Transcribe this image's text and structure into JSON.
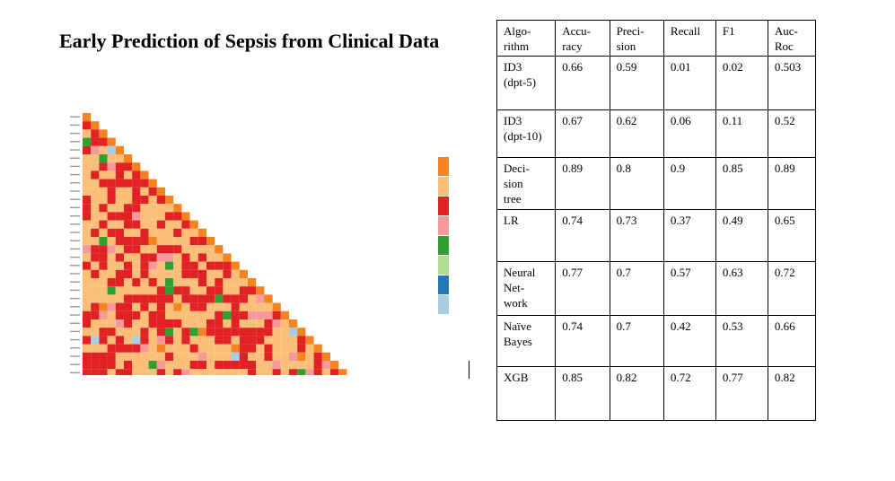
{
  "title": "Early Prediction of Sepsis from Clinical Data",
  "heatmap": {
    "palette": [
      "#f5831f",
      "#fbbf79",
      "#e02224",
      "#f6999a",
      "#31a031",
      "#b0e08f",
      "#2378b5",
      "#a6cde4"
    ],
    "size": 37
  },
  "table": {
    "headers": [
      "Algo-\nrithm",
      "Accu-\nracy",
      "Preci-\nsion",
      "Recall",
      "F1",
      "Auc-\nRoc"
    ],
    "rows": [
      [
        "ID3\n(dpt-5)",
        "0.66",
        "0.59",
        "0.01",
        "0.02",
        "0.503"
      ],
      [
        "ID3\n(dpt-10)",
        "0.67",
        "0.62",
        "0.06",
        "0.11",
        "0.52"
      ],
      [
        "Deci-\nsion\ntree",
        "0.89",
        "0.8",
        "0.9",
        "0.85",
        "0.89"
      ],
      [
        "LR",
        "0.74",
        "0.73",
        "0.37",
        "0.49",
        "0.65"
      ],
      [
        "Neural\nNet-\nwork",
        "0.77",
        "0.7",
        "0.57",
        "0.63",
        "0.72"
      ],
      [
        "Naïve\nBayes",
        "0.74",
        "0.7",
        "0.42",
        "0.53",
        "0.66"
      ],
      [
        "XGB",
        "0.85",
        "0.82",
        "0.72",
        "0.77",
        "0.82"
      ]
    ]
  }
}
